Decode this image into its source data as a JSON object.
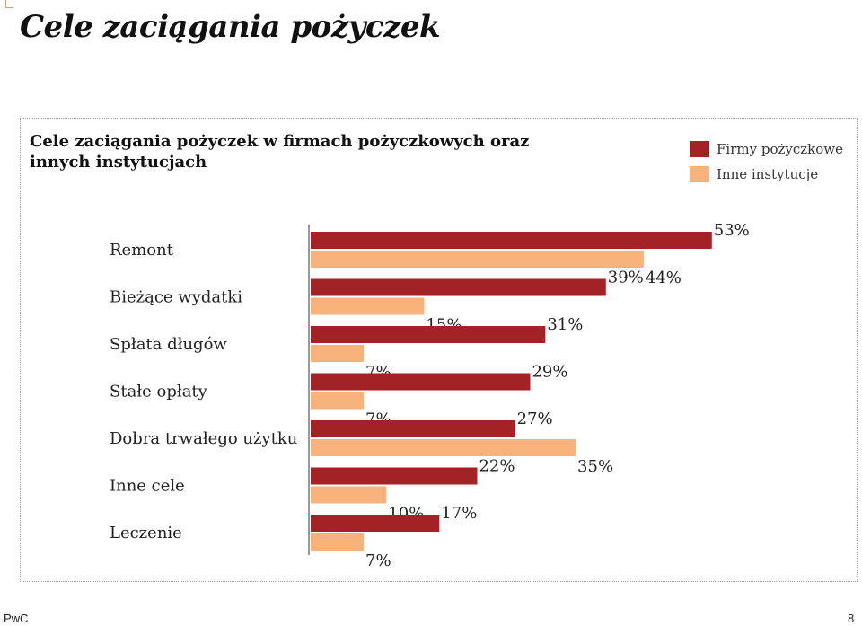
{
  "page": {
    "title": "Cele zaciągania pożyczek",
    "footer_brand": "PwC",
    "page_number": "8"
  },
  "chart_data": {
    "type": "bar",
    "orientation": "horizontal",
    "title": "Cele zaciągania pożyczek w firmach pożyczkowych oraz innych instytucjach",
    "categories": [
      "Remont",
      "Bieżące wydatki",
      "Spłata długów",
      "Stałe opłaty",
      "Dobra trwałego użytku",
      "Inne cele",
      "Leczenie"
    ],
    "series": [
      {
        "name": "Firmy pożyczkowe",
        "color": "#a32226",
        "values": [
          53,
          39,
          31,
          29,
          27,
          22,
          17
        ]
      },
      {
        "name": "Inne instytucje",
        "color": "#f8b27c",
        "values": [
          44,
          15,
          7,
          7,
          35,
          10,
          7
        ]
      }
    ],
    "value_suffix": "%",
    "xlim": [
      0,
      60
    ],
    "grid": false,
    "legend_position": "top-right"
  }
}
